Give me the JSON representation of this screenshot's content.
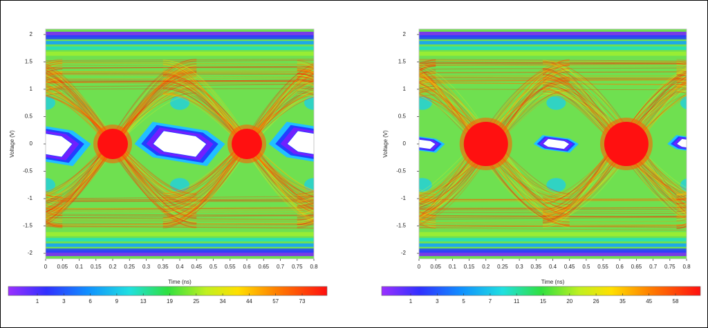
{
  "chart_data": [
    {
      "type": "eye-diagram",
      "x_label": "Time  (ns)",
      "y_label": "Voltage  (V)",
      "xlim": [
        0,
        0.8
      ],
      "xticks": [
        0,
        0.05,
        0.1,
        0.15,
        0.2,
        0.25,
        0.3,
        0.35,
        0.4,
        0.45,
        0.5,
        0.55,
        0.6,
        0.65,
        0.7,
        0.75,
        0.8
      ],
      "ylim": [
        -2.1,
        2.1
      ],
      "yticks": [
        -2,
        -1.5,
        -1,
        -0.5,
        0,
        0.5,
        1,
        1.5,
        2
      ],
      "colorbar_ticks": [
        1,
        3,
        6,
        9,
        13,
        19,
        25,
        34,
        44,
        57,
        73
      ]
    },
    {
      "type": "eye-diagram",
      "x_label": "Time  (ns)",
      "y_label": "Voltage  (V)",
      "xlim": [
        0,
        0.8
      ],
      "xticks": [
        0,
        0.05,
        0.1,
        0.15,
        0.2,
        0.25,
        0.3,
        0.35,
        0.4,
        0.45,
        0.5,
        0.55,
        0.6,
        0.65,
        0.7,
        0.75,
        0.8
      ],
      "ylim": [
        -2.1,
        2.1
      ],
      "yticks": [
        -2,
        -1.5,
        -1,
        -0.5,
        0,
        0.5,
        1,
        1.5,
        2
      ],
      "colorbar_ticks": [
        1,
        3,
        5,
        7,
        11,
        15,
        20,
        26,
        35,
        45,
        58
      ]
    }
  ]
}
